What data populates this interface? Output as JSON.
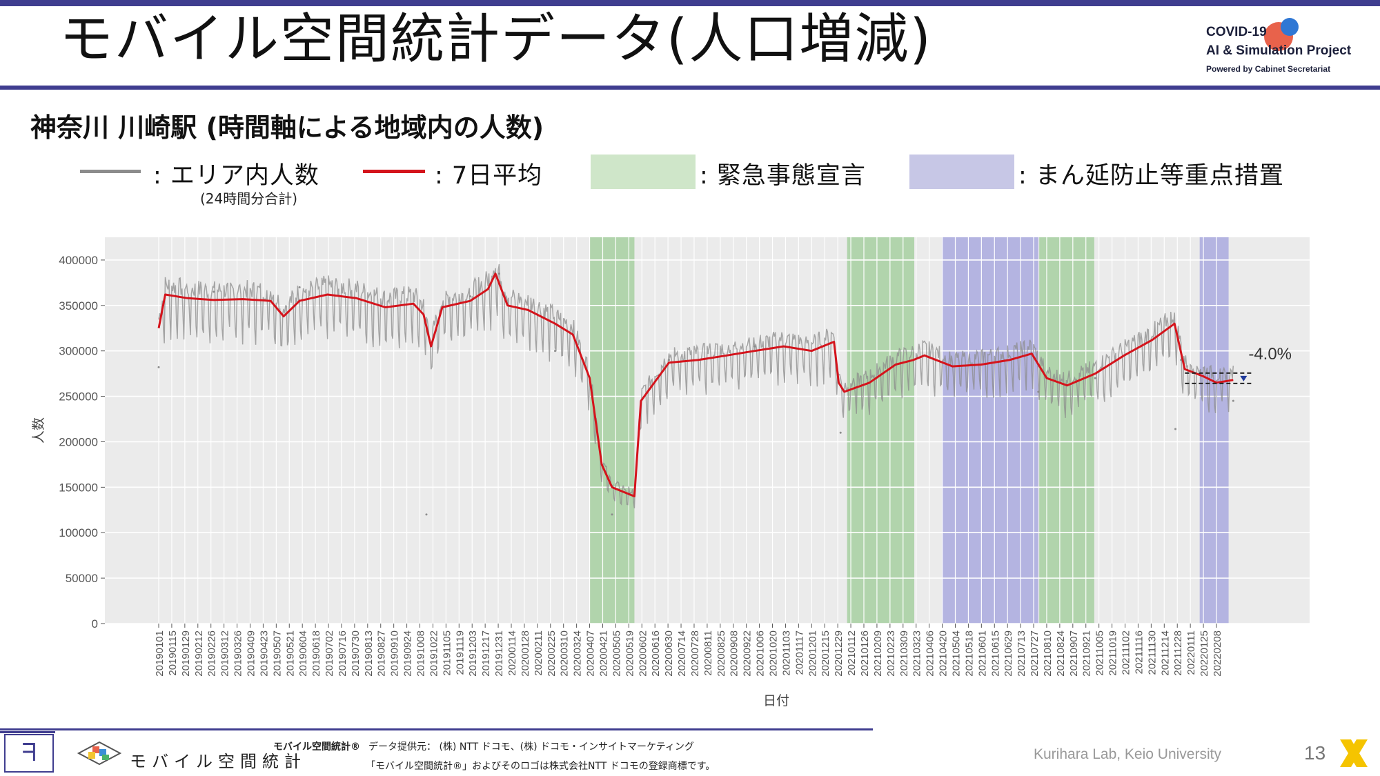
{
  "slide": {
    "title": "モバイル空間統計データ(人口増減)",
    "subtitle": "神奈川 川崎駅 (時間軸による地域内の人数)",
    "page_number": "13",
    "colors": {
      "accent": "#3f3d8f",
      "daily_line": "#8c8c8c",
      "avg_line": "#d4141c",
      "emergency_band": "#bcdcb4",
      "priority_band": "#b4b4e1",
      "plot_bg": "#ebebeb"
    }
  },
  "logo": {
    "line1": "COVID-19",
    "line2": "AI & Simulation Project",
    "line3": "Powered by Cabinet Secretariat"
  },
  "legend": {
    "daily": ": エリア内人数",
    "daily_note": "(24時間分合計)",
    "avg": ": 7日平均",
    "emergency": ": 緊急事態宣言",
    "priority": ": まん延防止等重点措置"
  },
  "footer": {
    "brand": "モバイル空間統計",
    "trademark_label": "モバイル空間統計®",
    "data_source": "データ提供元： (株) NTT ドコモ、(株) ドコモ・インサイトマーケティング",
    "trademark_note": "「モバイル空間統計®」およびそのロゴは株式会社NTT ドコモの登録商標です。",
    "lab": "Kurihara Lab, Keio University"
  },
  "chart_data": {
    "type": "line",
    "xlabel": "日付",
    "ylabel": "人数",
    "x_range": [
      "20190101",
      "20220226"
    ],
    "ylim": [
      0,
      425000
    ],
    "yticks": [
      0,
      50000,
      100000,
      150000,
      200000,
      250000,
      300000,
      350000,
      400000
    ],
    "xticks": [
      "20190101",
      "20190115",
      "20190129",
      "20190212",
      "20190226",
      "20190312",
      "20190326",
      "20190409",
      "20190423",
      "20190507",
      "20190521",
      "20190604",
      "20190618",
      "20190702",
      "20190716",
      "20190730",
      "20190813",
      "20190827",
      "20190910",
      "20190924",
      "20191008",
      "20191022",
      "20191105",
      "20191119",
      "20191203",
      "20191217",
      "20191231",
      "20200114",
      "20200128",
      "20200211",
      "20200225",
      "20200310",
      "20200324",
      "20200407",
      "20200421",
      "20200505",
      "20200519",
      "20200602",
      "20200616",
      "20200630",
      "20200714",
      "20200728",
      "20200811",
      "20200825",
      "20200908",
      "20200922",
      "20201006",
      "20201020",
      "20201103",
      "20201117",
      "20201201",
      "20201215",
      "20201229",
      "20210112",
      "20210126",
      "20210209",
      "20210223",
      "20210309",
      "20210323",
      "20210406",
      "20210420",
      "20210504",
      "20210518",
      "20210601",
      "20210615",
      "20210629",
      "20210713",
      "20210727",
      "20210810",
      "20210824",
      "20210907",
      "20210921",
      "20211005",
      "20211019",
      "20211102",
      "20211116",
      "20211130",
      "20211214",
      "20211228",
      "20220111",
      "20220125",
      "20220208"
    ],
    "grid": true,
    "annotation": "-4.0%",
    "series": [
      {
        "name": "7日平均",
        "color": "#d4141c",
        "x": [
          "20190101",
          "20190108",
          "20190201",
          "20190301",
          "20190401",
          "20190501",
          "20190515",
          "20190601",
          "20190701",
          "20190801",
          "20190901",
          "20191001",
          "20191012",
          "20191020",
          "20191101",
          "20191201",
          "20191220",
          "20191228",
          "20200110",
          "20200201",
          "20200301",
          "20200320",
          "20200407",
          "20200420",
          "20200501",
          "20200525",
          "20200601",
          "20200701",
          "20200801",
          "20200901",
          "20201001",
          "20201101",
          "20201201",
          "20201225",
          "20201230",
          "20210105",
          "20210201",
          "20210301",
          "20210320",
          "20210401",
          "20210501",
          "20210601",
          "20210701",
          "20210725",
          "20210810",
          "20210901",
          "20211001",
          "20211101",
          "20211201",
          "20211225",
          "20220105",
          "20220125",
          "20220208",
          "20220226"
        ],
        "values": [
          325000,
          362000,
          358000,
          356000,
          357000,
          355000,
          338000,
          355000,
          362000,
          358000,
          348000,
          352000,
          340000,
          305000,
          348000,
          355000,
          368000,
          385000,
          350000,
          345000,
          330000,
          318000,
          270000,
          175000,
          150000,
          140000,
          245000,
          287000,
          290000,
          295000,
          300000,
          305000,
          300000,
          310000,
          265000,
          255000,
          265000,
          285000,
          290000,
          295000,
          283000,
          285000,
          290000,
          297000,
          270000,
          262000,
          275000,
          295000,
          312000,
          330000,
          280000,
          272000,
          265000,
          268000
        ]
      },
      {
        "name": "エリア内人数",
        "color": "#8c8c8c",
        "note": "daily values oscillate around the 7-day average",
        "x": [
          "20190101",
          "20190301",
          "20190601",
          "20191015",
          "20191201",
          "20200101",
          "20200301",
          "20200501",
          "20200701",
          "20201001",
          "20210101",
          "20210401",
          "20210801",
          "20211001",
          "20211226",
          "20220101",
          "20220226"
        ],
        "values": [
          282000,
          365000,
          370000,
          120000,
          360000,
          385000,
          300000,
          120000,
          290000,
          305000,
          210000,
          295000,
          255000,
          270000,
          214000,
          290000,
          245000
        ]
      }
    ],
    "bands": [
      {
        "type": "緊急事態宣言",
        "start": "20200407",
        "end": "20200525"
      },
      {
        "type": "緊急事態宣言",
        "start": "20210108",
        "end": "20210321"
      },
      {
        "type": "まん延防止等重点措置",
        "start": "20210420",
        "end": "20210801"
      },
      {
        "type": "緊急事態宣言",
        "start": "20210802",
        "end": "20210930"
      },
      {
        "type": "まん延防止等重点措置",
        "start": "20220121",
        "end": "20220221"
      }
    ]
  }
}
